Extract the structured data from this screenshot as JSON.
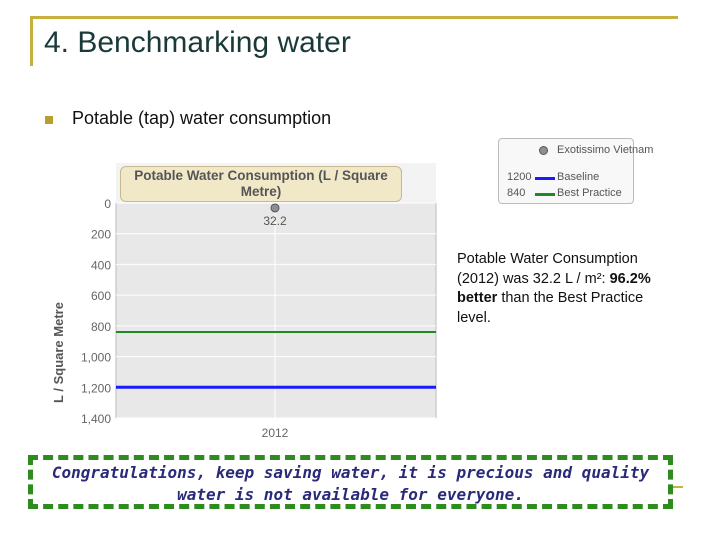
{
  "slide": {
    "title": "4. Benchmarking water",
    "bullet": "Potable (tap) water consumption",
    "note_part1": "Potable Water Consumption (2012) was 32.2 L / m²: ",
    "note_bold": "96.2% better",
    "note_part2": " than the Best Practice level.",
    "banner_line1": "Congratulations, keep saving water, it is precious and quality",
    "banner_line2": "water is not available for everyone.",
    "accent_color": "#c8b040",
    "banner_border_color": "#2e8b1e",
    "banner_text_color": "#2a2a7a"
  },
  "legend": {
    "items": [
      {
        "value": "",
        "name": "Exotissimo Vietnam",
        "marker": "dot",
        "color": "#8a8f98"
      },
      {
        "value": "1200",
        "name": "Baseline",
        "marker": "line",
        "color": "#1a1aff"
      },
      {
        "value": "840",
        "name": "Best Practice",
        "marker": "line",
        "color": "#1f8a1f"
      }
    ]
  },
  "chart_data": {
    "type": "scatter",
    "title": "Potable Water Consumption (L / Square Metre)",
    "ylabel": "L / Square Metre",
    "xlabel": "",
    "categories": [
      "2012"
    ],
    "y_inverted": true,
    "ylim": [
      0,
      1400
    ],
    "yticks": [
      0,
      200,
      400,
      600,
      800,
      1000,
      1200,
      1400
    ],
    "ytick_labels": [
      "0",
      "200",
      "400",
      "600",
      "800",
      "1,000",
      "1,200",
      "1,400"
    ],
    "grid": true,
    "series": [
      {
        "name": "Exotissimo Vietnam",
        "x": [
          "2012"
        ],
        "values": [
          32.2
        ],
        "data_labels": [
          "32.2"
        ],
        "color": "#8a8f98"
      }
    ],
    "reference_lines": [
      {
        "name": "Baseline",
        "value": 1200,
        "color": "#1a1aff"
      },
      {
        "name": "Best Practice",
        "value": 840,
        "color": "#1f8a1f"
      }
    ]
  }
}
